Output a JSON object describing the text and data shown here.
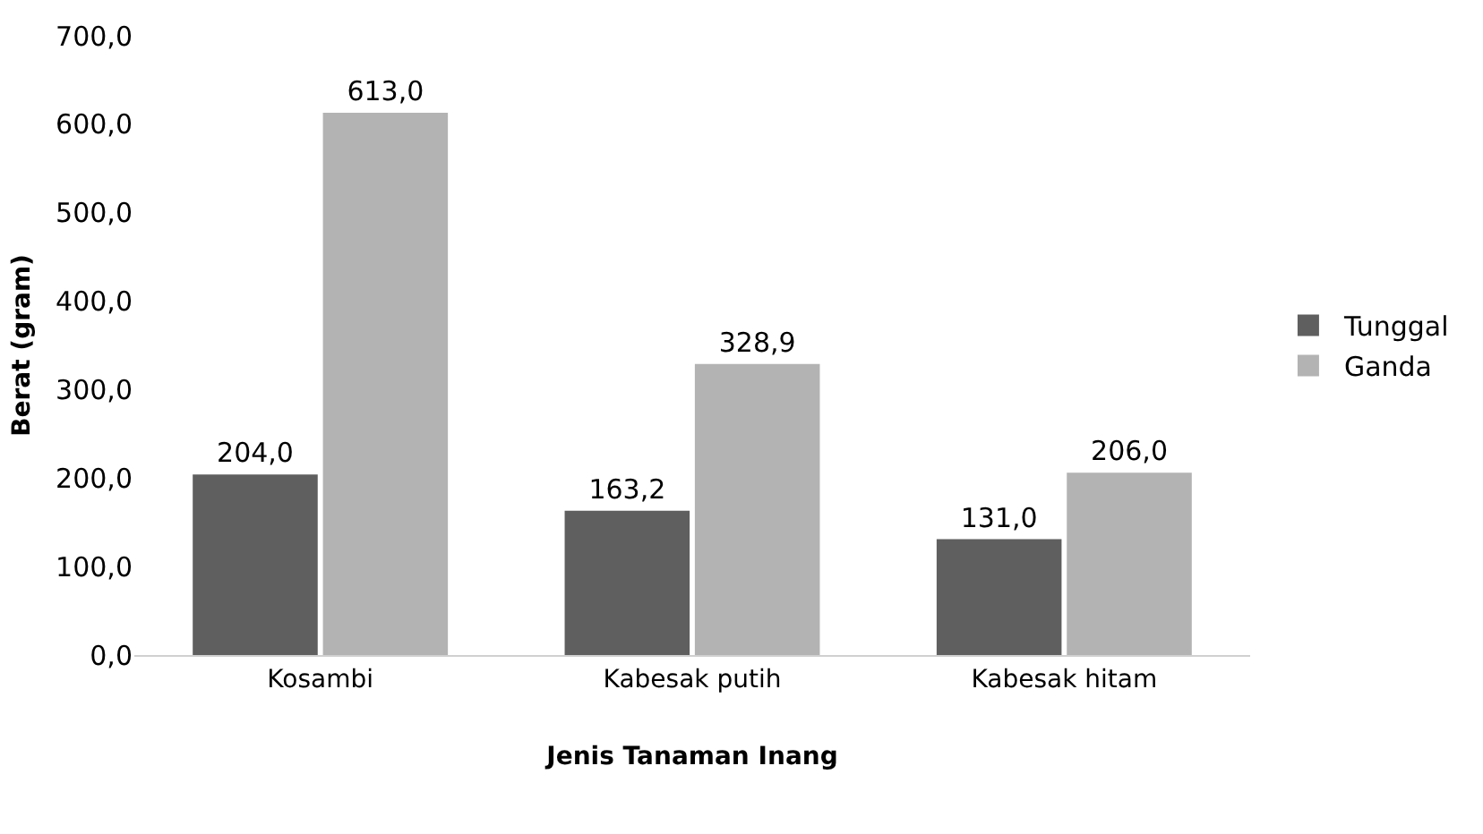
{
  "chart_data": {
    "type": "bar",
    "xlabel": "Jenis Tanaman Inang",
    "ylabel": "Berat (gram)",
    "categories": [
      "Kosambi",
      "Kabesak putih",
      "Kabesak hitam"
    ],
    "series": [
      {
        "name": "Tunggal",
        "color": "#5f5f5f",
        "values": [
          204.0,
          163.2,
          131.0
        ],
        "value_labels": [
          "204,0",
          "163,2",
          "131,0"
        ]
      },
      {
        "name": "Ganda",
        "color": "#b3b3b3",
        "values": [
          613.0,
          328.9,
          206.0
        ],
        "value_labels": [
          "613,0",
          "328,9",
          "206,0"
        ]
      }
    ],
    "ylim": [
      0,
      700
    ],
    "yticks": [
      {
        "value": 0,
        "label": "0,0"
      },
      {
        "value": 100,
        "label": "100,0"
      },
      {
        "value": 200,
        "label": "200,0"
      },
      {
        "value": 300,
        "label": "300,0"
      },
      {
        "value": 400,
        "label": "400,0"
      },
      {
        "value": 500,
        "label": "500,0"
      },
      {
        "value": 600,
        "label": "600,0"
      },
      {
        "value": 700,
        "label": "700,0"
      }
    ],
    "grid": false,
    "legend": "right"
  }
}
